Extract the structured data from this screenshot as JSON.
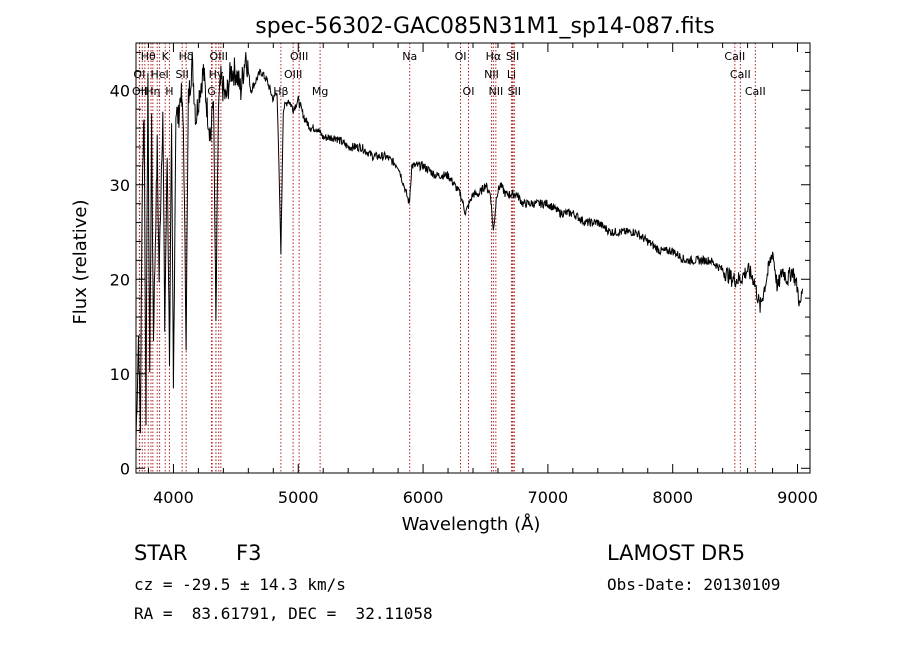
{
  "chart_data": {
    "type": "line",
    "title": "spec-56302-GAC085N31M1_sp14-087.fits",
    "xlabel": "Wavelength (Å)",
    "ylabel": "Flux (relative)",
    "xlim": [
      3700,
      9100
    ],
    "ylim": [
      -0.5,
      45
    ],
    "x_ticks": [
      4000,
      5000,
      6000,
      7000,
      8000,
      9000
    ],
    "y_ticks": [
      0,
      10,
      20,
      30,
      40
    ],
    "line_color": "#000000",
    "marker_color": "#b22222",
    "spectrum": {
      "x": [
        3700,
        3720,
        3735,
        3750,
        3765,
        3780,
        3795,
        3810,
        3825,
        3840,
        3855,
        3870,
        3885,
        3900,
        3915,
        3930,
        3950,
        3968,
        3985,
        4000,
        4020,
        4040,
        4060,
        4080,
        4101,
        4120,
        4150,
        4180,
        4210,
        4240,
        4270,
        4300,
        4320,
        4340,
        4360,
        4380,
        4420,
        4460,
        4500,
        4540,
        4580,
        4620,
        4660,
        4700,
        4750,
        4800,
        4830,
        4861,
        4880,
        4920,
        4960,
        5000,
        5050,
        5100,
        5150,
        5200,
        5300,
        5400,
        5500,
        5600,
        5700,
        5800,
        5890,
        5910,
        6000,
        6100,
        6200,
        6250,
        6300,
        6340,
        6400,
        6450,
        6500,
        6540,
        6563,
        6590,
        6620,
        6660,
        6700,
        6750,
        6800,
        6900,
        7000,
        7100,
        7200,
        7300,
        7400,
        7500,
        7600,
        7700,
        7800,
        7900,
        8000,
        8100,
        8200,
        8300,
        8400,
        8480,
        8540,
        8600,
        8650,
        8700,
        8750,
        8800,
        8840,
        8880,
        8920,
        8960,
        9000,
        9020,
        9040
      ],
      "y": [
        3,
        14,
        4,
        30,
        38,
        6,
        42,
        10,
        36,
        14,
        24,
        34,
        20,
        30,
        38,
        15,
        33,
        12,
        35,
        8,
        38,
        37,
        40,
        36,
        14,
        39,
        43,
        37,
        40,
        42,
        38,
        35,
        40,
        15,
        38,
        41,
        39,
        42,
        42,
        40,
        44,
        40,
        41,
        42,
        41,
        39,
        40,
        23,
        38,
        39,
        38,
        39,
        37,
        36,
        36,
        35,
        35,
        34,
        34,
        33,
        33,
        32,
        28,
        32,
        32,
        31,
        31,
        30,
        29,
        27,
        29,
        29,
        30,
        29,
        25,
        29,
        30,
        29,
        29,
        29,
        28,
        28,
        28,
        27,
        27,
        26,
        26,
        25,
        25,
        25,
        24,
        23,
        23,
        22,
        22,
        22,
        21,
        20,
        20,
        21,
        20,
        17,
        20,
        23,
        19,
        21,
        20,
        21,
        19,
        17,
        19
      ]
    },
    "lines_top": [
      {
        "label": "Hθ",
        "x": 3798
      },
      {
        "label": "K",
        "x": 3934
      },
      {
        "label": "Hδ",
        "x": 4102
      },
      {
        "label": "OIII",
        "x": 4363
      },
      {
        "label": "OIII",
        "x": 5007
      },
      {
        "label": "Na",
        "x": 5893
      },
      {
        "label": "OI",
        "x": 6300
      },
      {
        "label": "Hα",
        "x": 6563
      },
      {
        "label": "SII",
        "x": 6717
      },
      {
        "label": "CaII",
        "x": 8498
      }
    ],
    "lines_mid": [
      {
        "label": "OI",
        "x": 3727
      },
      {
        "label": "HeI",
        "x": 3889
      },
      {
        "label": "SII",
        "x": 4070
      },
      {
        "label": "Hγ",
        "x": 4341
      },
      {
        "label": "OIII",
        "x": 4959
      },
      {
        "label": "NII",
        "x": 6548
      },
      {
        "label": "Li",
        "x": 6708
      },
      {
        "label": "CaII",
        "x": 8542
      }
    ],
    "lines_low": [
      {
        "label": "OII",
        "x": 3729
      },
      {
        "label": "Hη",
        "x": 3835
      },
      {
        "label": "H",
        "x": 3968
      },
      {
        "label": "G",
        "x": 4305
      },
      {
        "label": "Hβ",
        "x": 4861
      },
      {
        "label": "Mg",
        "x": 5175
      },
      {
        "label": "OI",
        "x": 6364
      },
      {
        "label": "NII",
        "x": 6583
      },
      {
        "label": "SII",
        "x": 6731
      },
      {
        "label": "CaII",
        "x": 8662
      }
    ],
    "extra_marker_x": [
      3750,
      3771,
      3820,
      3870,
      4310,
      4340,
      4380,
      6720
    ]
  },
  "info": {
    "class": "STAR",
    "subclass": "F3",
    "survey": "LAMOST DR5",
    "cz": "cz = -29.5 ± 14.3 km/s",
    "obs_date": "Obs-Date: 20130109",
    "coords": "RA =  83.61791, DEC =  32.11058"
  }
}
